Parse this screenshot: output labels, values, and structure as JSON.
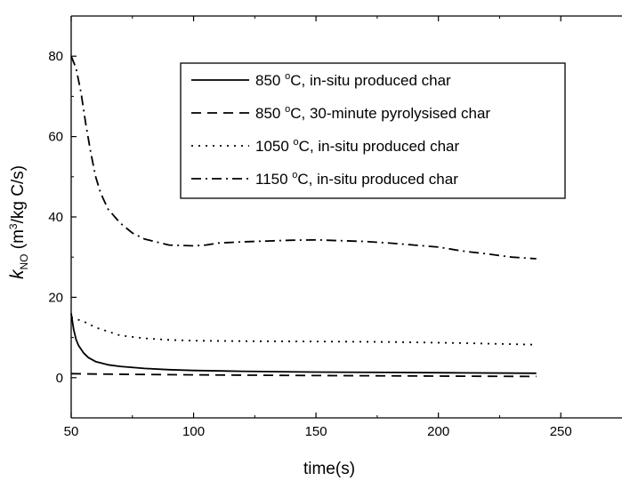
{
  "chart_data": {
    "type": "line",
    "title": "",
    "xlabel": "time(s)",
    "ylabel": {
      "symbol": "k",
      "subscript": "NO",
      "unit_prefix": " (m",
      "unit_sup": "3",
      "unit_suffix": "/kg C/s)"
    },
    "xlim": [
      50,
      275
    ],
    "ylim": [
      -10,
      90
    ],
    "xticks": [
      50,
      100,
      150,
      200,
      250
    ],
    "yticks": [
      0,
      20,
      40,
      60,
      80
    ],
    "grid": false,
    "legend_position": "top-right",
    "series": [
      {
        "name": "850 °C,  in-situ produced char",
        "name_parts": {
          "value": "850 ",
          "deg": "o",
          "rest": "C,  in-situ produced char"
        },
        "dash": "solid",
        "x": [
          50,
          51,
          52,
          53,
          55,
          57,
          60,
          65,
          70,
          80,
          90,
          100,
          120,
          150,
          180,
          210,
          240
        ],
        "y": [
          16,
          12,
          9.5,
          8,
          6.2,
          5,
          4,
          3.2,
          2.8,
          2.3,
          2.0,
          1.8,
          1.6,
          1.4,
          1.3,
          1.2,
          1.1
        ]
      },
      {
        "name": "850 °C,  30-minute pyrolysised char",
        "name_parts": {
          "value": "850 ",
          "deg": "o",
          "rest": "C,  30-minute pyrolysised char"
        },
        "dash": "dashed",
        "x": [
          50,
          60,
          80,
          100,
          130,
          160,
          200,
          240
        ],
        "y": [
          1.0,
          0.9,
          0.8,
          0.7,
          0.6,
          0.5,
          0.4,
          0.3
        ]
      },
      {
        "name": "1050 °C, in-situ produced char",
        "name_parts": {
          "value": "1050 ",
          "deg": "o",
          "rest": "C, in-situ produced char"
        },
        "dash": "dotted",
        "x": [
          50,
          55,
          60,
          65,
          70,
          80,
          90,
          100,
          120,
          150,
          180,
          210,
          240
        ],
        "y": [
          15,
          14,
          12.5,
          11.5,
          10.5,
          9.8,
          9.4,
          9.2,
          9.1,
          9.0,
          8.9,
          8.6,
          8.2
        ]
      },
      {
        "name": "1150 °C, in-situ produced char",
        "name_parts": {
          "value": "1150 ",
          "deg": "o",
          "rest": "C, in-situ produced char"
        },
        "dash": "dashdot",
        "x": [
          50,
          52,
          54,
          56,
          58,
          60,
          62,
          65,
          70,
          75,
          80,
          90,
          100,
          105,
          110,
          120,
          130,
          140,
          150,
          160,
          170,
          180,
          190,
          200,
          210,
          220,
          230,
          240
        ],
        "y": [
          80,
          77,
          71,
          63,
          56,
          50,
          46,
          42,
          38.5,
          36,
          34.5,
          33,
          32.8,
          33,
          33.5,
          33.8,
          34,
          34.2,
          34.3,
          34.1,
          33.9,
          33.5,
          33,
          32.5,
          31.5,
          30.8,
          30,
          29.6
        ]
      }
    ]
  }
}
